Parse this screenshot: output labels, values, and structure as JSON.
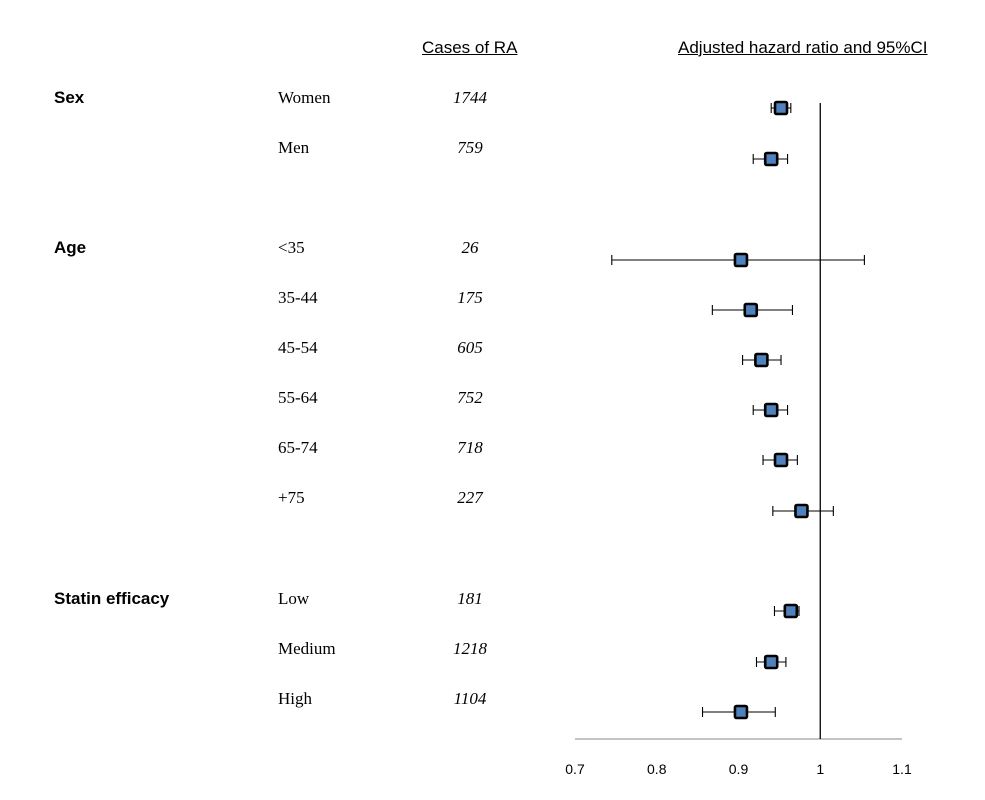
{
  "headers": {
    "cases": "Cases of RA",
    "hr": "Adjusted hazard ratio and 95%CI"
  },
  "groups": [
    {
      "name": "Sex",
      "rows": [
        {
          "label": "Women",
          "cases": "1744"
        },
        {
          "label": "Men",
          "cases": "759"
        }
      ]
    },
    {
      "name": "Age",
      "rows": [
        {
          "label": "<35",
          "cases": "26"
        },
        {
          "label": "35-44",
          "cases": "175"
        },
        {
          "label": "45-54",
          "cases": "605"
        },
        {
          "label": "55-64",
          "cases": "752"
        },
        {
          "label": "65-74",
          "cases": "718"
        },
        {
          "label": "+75",
          "cases": "227"
        }
      ]
    },
    {
      "name": "Statin efficacy",
      "rows": [
        {
          "label": "Low",
          "cases": "181"
        },
        {
          "label": "Medium",
          "cases": "1218"
        },
        {
          "label": "High",
          "cases": "1104"
        }
      ]
    }
  ],
  "chart_data": {
    "type": "forest",
    "xlim": [
      0.7,
      1.1
    ],
    "xticks": [
      "0.7",
      "0.8",
      "0.9",
      "1",
      "1.1"
    ],
    "reference_line": 1,
    "marker_color": "#4f81bd",
    "categories": [
      "Women",
      "Men",
      "<35",
      "35-44",
      "45-54",
      "55-64",
      "65-74",
      "+75",
      "Low",
      "Medium",
      "High"
    ],
    "hr": [
      0.952,
      0.94,
      0.903,
      0.915,
      0.928,
      0.94,
      0.952,
      0.977,
      0.964,
      0.94,
      0.903
    ],
    "lower": [
      0.94,
      0.918,
      0.745,
      0.868,
      0.905,
      0.918,
      0.93,
      0.942,
      0.944,
      0.922,
      0.856
    ],
    "upper": [
      0.964,
      0.96,
      1.054,
      0.966,
      0.952,
      0.96,
      0.972,
      1.016,
      0.974,
      0.958,
      0.945
    ]
  }
}
